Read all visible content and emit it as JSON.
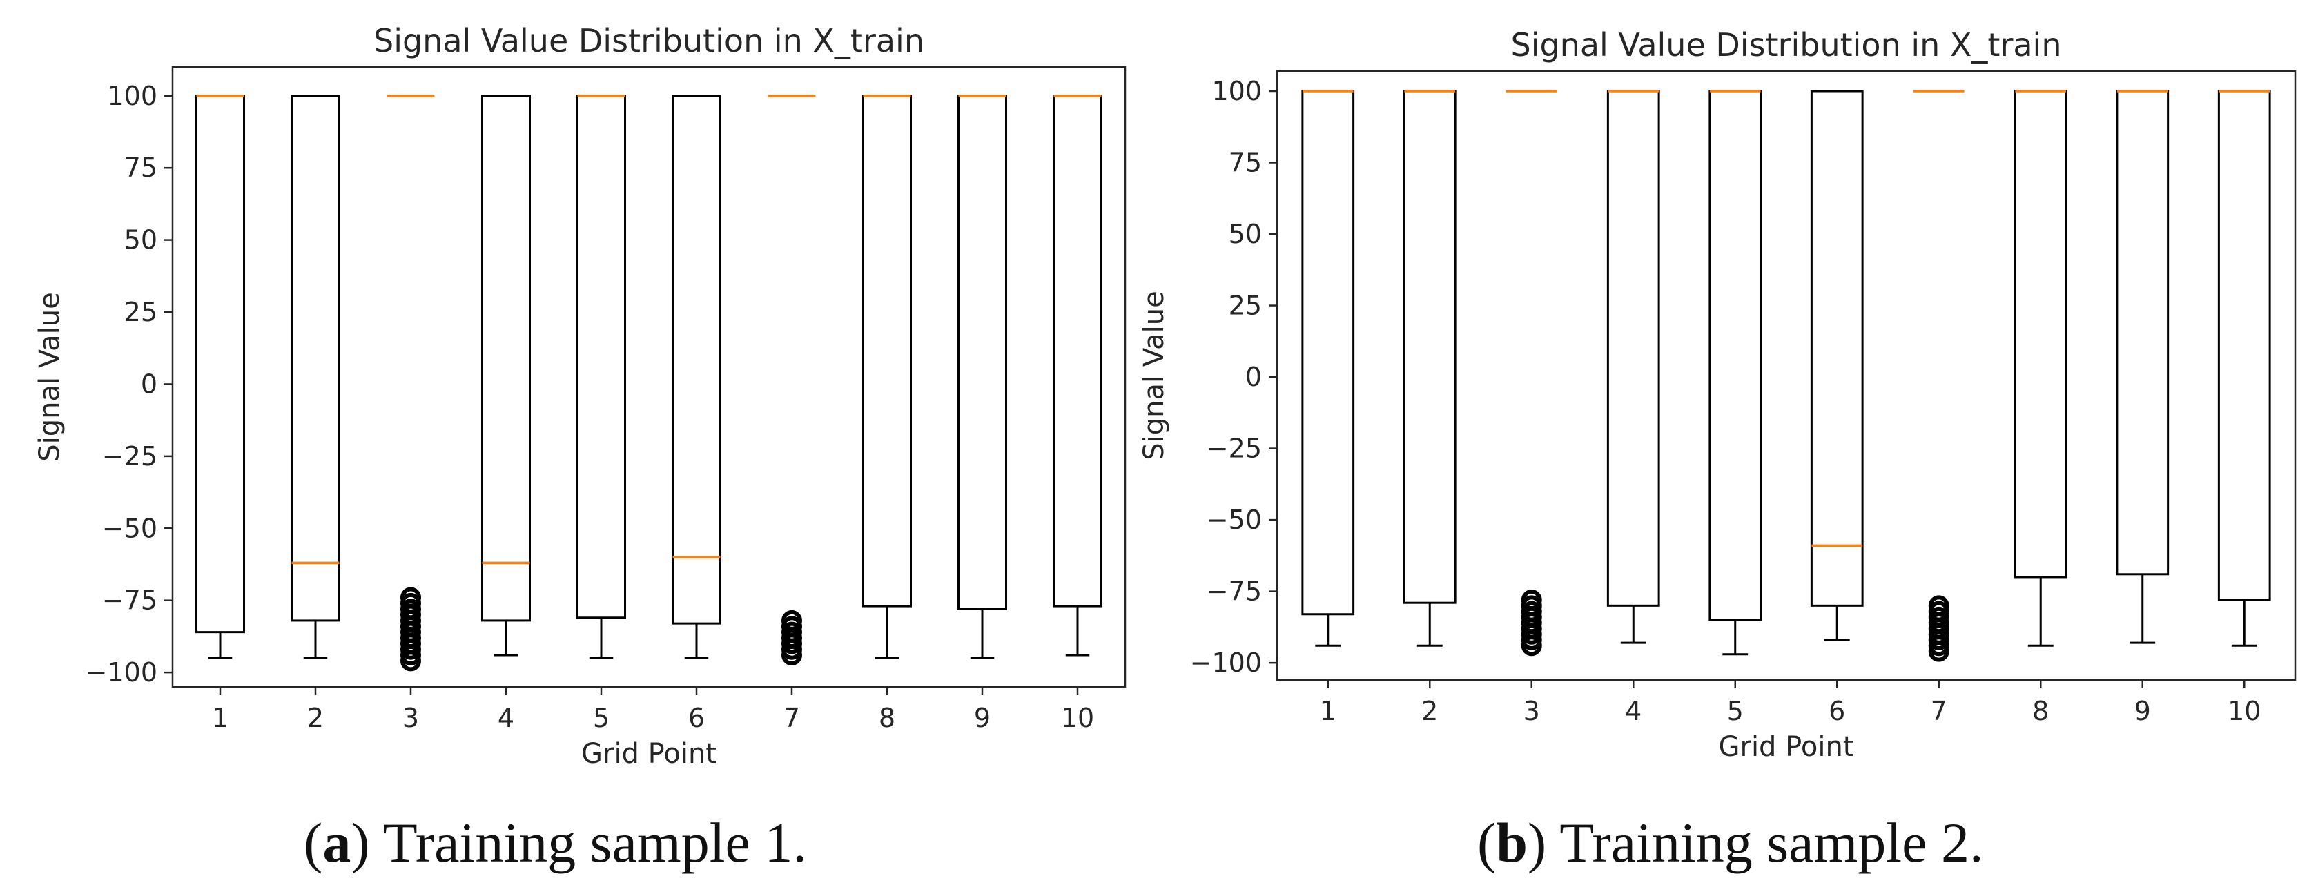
{
  "chart_data": [
    {
      "type": "box",
      "title": "Signal Value Distribution in X_train",
      "xlabel": "Grid Point",
      "ylabel": "Signal Value",
      "categories": [
        "1",
        "2",
        "3",
        "4",
        "5",
        "6",
        "7",
        "8",
        "9",
        "10"
      ],
      "yticks": [
        "100",
        "75",
        "50",
        "25",
        "0",
        "−25",
        "−50",
        "−75",
        "−100"
      ],
      "ylim": [
        -105,
        110
      ],
      "box_color": "#000000",
      "median_color": "#ff7f0e",
      "boxes": [
        {
          "q1": -86,
          "median": 100,
          "q3": 100,
          "whisker_low": -95,
          "whisker_high": 100,
          "outliers": []
        },
        {
          "q1": -82,
          "median": -62,
          "q3": 100,
          "whisker_low": -95,
          "whisker_high": 100,
          "outliers": []
        },
        {
          "q1": 100,
          "median": 100,
          "q3": 100,
          "whisker_low": 100,
          "whisker_high": 100,
          "outliers": [
            -74,
            -76,
            -78,
            -80,
            -82,
            -84,
            -86,
            -88,
            -90,
            -92,
            -94,
            -96
          ]
        },
        {
          "q1": -82,
          "median": -62,
          "q3": 100,
          "whisker_low": -94,
          "whisker_high": 100,
          "outliers": []
        },
        {
          "q1": -81,
          "median": 100,
          "q3": 100,
          "whisker_low": -95,
          "whisker_high": 100,
          "outliers": []
        },
        {
          "q1": -83,
          "median": -60,
          "q3": 100,
          "whisker_low": -95,
          "whisker_high": 100,
          "outliers": []
        },
        {
          "q1": 100,
          "median": 100,
          "q3": 100,
          "whisker_low": 100,
          "whisker_high": 100,
          "outliers": [
            -82,
            -84,
            -86,
            -88,
            -90,
            -92,
            -94
          ]
        },
        {
          "q1": -77,
          "median": 100,
          "q3": 100,
          "whisker_low": -95,
          "whisker_high": 100,
          "outliers": []
        },
        {
          "q1": -78,
          "median": 100,
          "q3": 100,
          "whisker_low": -95,
          "whisker_high": 100,
          "outliers": []
        },
        {
          "q1": -77,
          "median": 100,
          "q3": 100,
          "whisker_low": -94,
          "whisker_high": 100,
          "outliers": []
        }
      ],
      "caption": {
        "letter": "a",
        "text": "Training sample 1."
      }
    },
    {
      "type": "box",
      "title": "Signal Value Distribution in X_train",
      "xlabel": "Grid Point",
      "ylabel": "Signal Value",
      "categories": [
        "1",
        "2",
        "3",
        "4",
        "5",
        "6",
        "7",
        "8",
        "9",
        "10"
      ],
      "yticks": [
        "100",
        "75",
        "50",
        "25",
        "0",
        "−25",
        "−50",
        "−75",
        "−100"
      ],
      "ylim": [
        -106,
        107
      ],
      "box_color": "#000000",
      "median_color": "#ff7f0e",
      "boxes": [
        {
          "q1": -83,
          "median": 100,
          "q3": 100,
          "whisker_low": -94,
          "whisker_high": 100,
          "outliers": []
        },
        {
          "q1": -79,
          "median": 100,
          "q3": 100,
          "whisker_low": -94,
          "whisker_high": 100,
          "outliers": []
        },
        {
          "q1": 100,
          "median": 100,
          "q3": 100,
          "whisker_low": 100,
          "whisker_high": 100,
          "outliers": [
            -78,
            -80,
            -82,
            -84,
            -86,
            -88,
            -90,
            -92,
            -94
          ]
        },
        {
          "q1": -80,
          "median": 100,
          "q3": 100,
          "whisker_low": -93,
          "whisker_high": 100,
          "outliers": []
        },
        {
          "q1": -85,
          "median": 100,
          "q3": 100,
          "whisker_low": -97,
          "whisker_high": 100,
          "outliers": []
        },
        {
          "q1": -80,
          "median": -59,
          "q3": 100,
          "whisker_low": -92,
          "whisker_high": 100,
          "outliers": []
        },
        {
          "q1": 100,
          "median": 100,
          "q3": 100,
          "whisker_low": 100,
          "whisker_high": 100,
          "outliers": [
            -80,
            -82,
            -84,
            -86,
            -88,
            -90,
            -92,
            -94,
            -96
          ]
        },
        {
          "q1": -70,
          "median": 100,
          "q3": 100,
          "whisker_low": -94,
          "whisker_high": 100,
          "outliers": []
        },
        {
          "q1": -69,
          "median": 100,
          "q3": 100,
          "whisker_low": -93,
          "whisker_high": 100,
          "outliers": []
        },
        {
          "q1": -78,
          "median": 100,
          "q3": 100,
          "whisker_low": -94,
          "whisker_high": 100,
          "outliers": []
        }
      ],
      "caption": {
        "letter": "b",
        "text": "Training sample 2."
      }
    }
  ]
}
